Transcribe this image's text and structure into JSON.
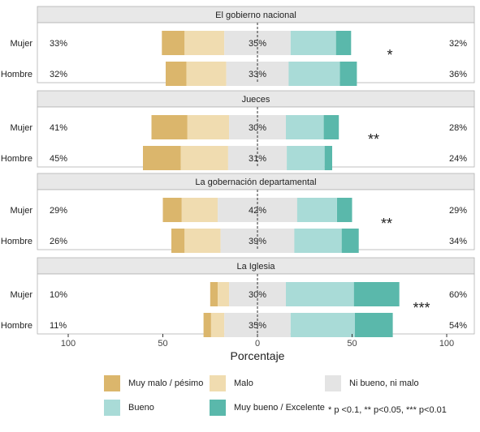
{
  "chart_data": {
    "type": "bar",
    "orientation": "horizontal-diverging-stacked",
    "xlabel": "Porcentaje",
    "x_ticks": [
      100,
      50,
      0,
      50,
      100
    ],
    "x_range": [
      -100,
      100
    ],
    "categories": [
      "Muy malo / pésimo",
      "Malo",
      "Ni bueno,  ni malo",
      "Bueno",
      "Muy bueno /  Excelente"
    ],
    "colors": [
      "#dbb66c",
      "#f0dcb0",
      "#e4e4e4",
      "#a9dbd7",
      "#5ab8ab"
    ],
    "panels": [
      {
        "title": "El gobierno nacional",
        "significance": "*",
        "rows": [
          {
            "label": "Mujer",
            "left_pct": "33%",
            "neutral_pct": "35%",
            "right_pct": "32%",
            "values": [
              12,
              21,
              35,
              24,
              8
            ]
          },
          {
            "label": "Hombre",
            "left_pct": "32%",
            "neutral_pct": "33%",
            "right_pct": "36%",
            "values": [
              11,
              21,
              33,
              27,
              9
            ]
          }
        ]
      },
      {
        "title": "Jueces",
        "significance": "**",
        "rows": [
          {
            "label": "Mujer",
            "left_pct": "41%",
            "neutral_pct": "30%",
            "right_pct": "28%",
            "values": [
              19,
              22,
              30,
              20,
              8
            ]
          },
          {
            "label": "Hombre",
            "left_pct": "45%",
            "neutral_pct": "31%",
            "right_pct": "24%",
            "values": [
              20,
              25,
              31,
              20,
              4
            ]
          }
        ]
      },
      {
        "title": "La gobernación departamental",
        "significance": "**",
        "rows": [
          {
            "label": "Mujer",
            "left_pct": "29%",
            "neutral_pct": "42%",
            "right_pct": "29%",
            "values": [
              10,
              19,
              42,
              21,
              8
            ]
          },
          {
            "label": "Hombre",
            "left_pct": "26%",
            "neutral_pct": "39%",
            "right_pct": "34%",
            "values": [
              7,
              19,
              39,
              25,
              9
            ]
          }
        ]
      },
      {
        "title": "La Iglesia",
        "significance": "***",
        "rows": [
          {
            "label": "Mujer",
            "left_pct": "10%",
            "neutral_pct": "30%",
            "right_pct": "60%",
            "values": [
              4,
              6,
              30,
              36,
              24
            ]
          },
          {
            "label": "Hombre",
            "left_pct": "11%",
            "neutral_pct": "35%",
            "right_pct": "54%",
            "values": [
              4,
              7,
              35,
              34,
              20
            ]
          }
        ]
      }
    ],
    "note": "* p <0.1, ** p<0.05, *** p<0.01"
  }
}
